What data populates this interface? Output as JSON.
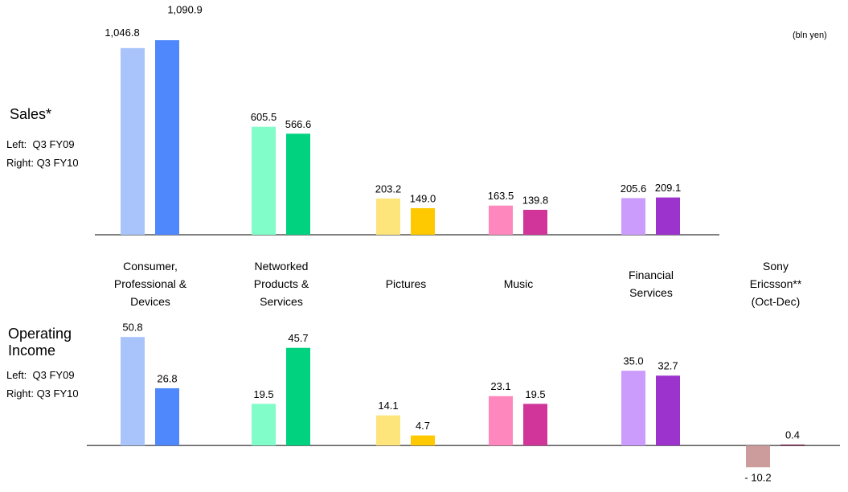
{
  "unit_note": "(bln yen)",
  "categories": [
    "Consumer, Professional & Devices",
    "Networked Products & Services",
    "Pictures",
    "Music",
    "Financial Services",
    "Sony Ericsson** (Oct-Dec)"
  ],
  "chart_data": [
    {
      "type": "bar",
      "title": "Sales*",
      "ylim": [
        0,
        1100
      ],
      "series": [
        {
          "name": "Left:  Q3 FY09",
          "colors": [
            "#a8c4fb",
            "#80fdc8",
            "#fee57b",
            "#fe88bd",
            "#cc9cfc",
            "#cc9c9c"
          ],
          "values": [
            1046.8,
            605.5,
            203.2,
            163.5,
            205.6,
            null
          ],
          "value_labels": [
            "1,046.8",
            "605.5",
            "203.2",
            "163.5",
            "205.6",
            null
          ]
        },
        {
          "name": "Right: Q3 FY10",
          "colors": [
            "#4f88fc",
            "#00d27f",
            "#fec900",
            "#d2359a",
            "#9b33cc",
            "#660033"
          ],
          "values": [
            1090.9,
            566.6,
            149.0,
            139.8,
            209.1,
            null
          ],
          "value_labels": [
            "1,090.9",
            "566.6",
            "149.0",
            "139.8",
            "209.1",
            null
          ]
        }
      ]
    },
    {
      "type": "bar",
      "title": "Operating Income",
      "ylim": [
        -15,
        55
      ],
      "series": [
        {
          "name": "Left:  Q3 FY09",
          "colors": [
            "#a8c4fb",
            "#80fdc8",
            "#fee57b",
            "#fe88bd",
            "#cc9cfc",
            "#cc9c9c"
          ],
          "values": [
            50.8,
            19.5,
            14.1,
            23.1,
            35.0,
            -10.2
          ],
          "value_labels": [
            "50.8",
            "19.5",
            "14.1",
            "23.1",
            "35.0",
            "- 10.2"
          ]
        },
        {
          "name": "Right: Q3 FY10",
          "colors": [
            "#4f88fc",
            "#00d27f",
            "#fec900",
            "#d2359a",
            "#9b33cc",
            "#660033"
          ],
          "values": [
            26.8,
            45.7,
            4.7,
            19.5,
            32.7,
            0.4
          ],
          "value_labels": [
            "26.8",
            "45.7",
            "4.7",
            "19.5",
            "32.7",
            "0.4"
          ]
        }
      ]
    }
  ]
}
